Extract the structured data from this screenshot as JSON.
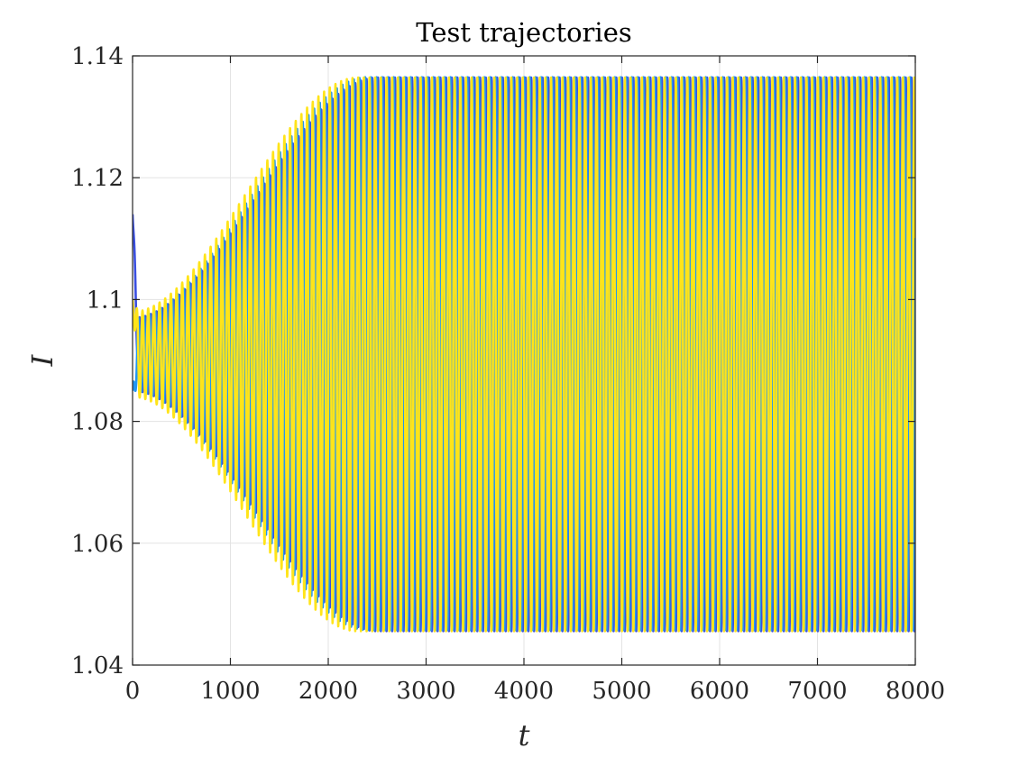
{
  "chart_data": {
    "type": "line",
    "title": "Test trajectories",
    "xlabel": "t",
    "ylabel": "I",
    "xlim": [
      0,
      8000
    ],
    "ylim": [
      1.04,
      1.14
    ],
    "xticks": [
      0,
      1000,
      2000,
      3000,
      4000,
      5000,
      6000,
      7000,
      8000
    ],
    "xtick_labels": [
      "0",
      "1000",
      "2000",
      "3000",
      "4000",
      "5000",
      "6000",
      "7000",
      "8000"
    ],
    "yticks": [
      1.04,
      1.06,
      1.08,
      1.1,
      1.12,
      1.14
    ],
    "ytick_labels": [
      "1.04",
      "1.06",
      "1.08",
      "1.1",
      "1.12",
      "1.14"
    ],
    "grid": true,
    "series": [
      {
        "color": "#3a4fe0",
        "x0": 0,
        "y0": 1.114,
        "mean": 1.091,
        "amplitude_start": 0.006,
        "amplitude_end": 0.0455,
        "growth_end_t": 2500,
        "period": 58,
        "phase": 0.0
      },
      {
        "color": "#2196f3",
        "x0": 0,
        "y0": 1.085,
        "mean": 1.091,
        "amplitude_start": 0.006,
        "amplitude_end": 0.0455,
        "growth_end_t": 2400,
        "period": 58,
        "phase": 0.25
      },
      {
        "color": "#ffe419",
        "x0": 0,
        "y0": 1.1,
        "mean": 1.091,
        "amplitude_start": 0.007,
        "amplitude_end": 0.0455,
        "growth_end_t": 2300,
        "period": 58,
        "phase": 0.5
      }
    ]
  }
}
